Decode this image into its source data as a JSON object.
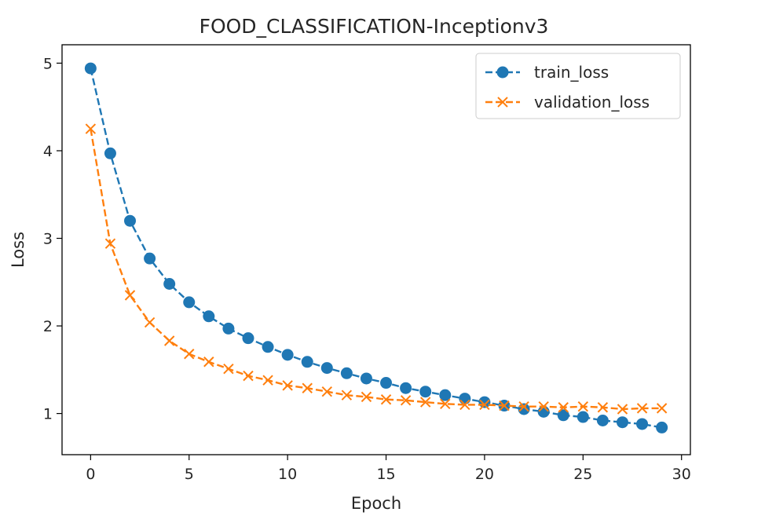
{
  "chart_data": {
    "type": "line",
    "title": "FOOD_CLASSIFICATION-Inceptionv3",
    "xlabel": "Epoch",
    "ylabel": "Loss",
    "xlim": [
      -1.45,
      30.45
    ],
    "ylim": [
      0.53,
      5.21
    ],
    "xticks": [
      0,
      5,
      10,
      15,
      20,
      25,
      30
    ],
    "yticks": [
      1,
      2,
      3,
      4,
      5
    ],
    "legend_position": "top-right",
    "x": [
      0,
      1,
      2,
      3,
      4,
      5,
      6,
      7,
      8,
      9,
      10,
      11,
      12,
      13,
      14,
      15,
      16,
      17,
      18,
      19,
      20,
      21,
      22,
      23,
      24,
      25,
      26,
      27,
      28,
      29
    ],
    "series": [
      {
        "name": "train_loss",
        "color": "#1f77b4",
        "linestyle": "dashed",
        "marker": "circle",
        "values": [
          4.94,
          3.97,
          3.2,
          2.77,
          2.48,
          2.27,
          2.11,
          1.97,
          1.86,
          1.76,
          1.67,
          1.59,
          1.52,
          1.46,
          1.4,
          1.35,
          1.29,
          1.25,
          1.21,
          1.17,
          1.13,
          1.09,
          1.05,
          1.02,
          0.98,
          0.96,
          0.92,
          0.9,
          0.88,
          0.84
        ]
      },
      {
        "name": "validation_loss",
        "color": "#ff7f0e",
        "linestyle": "dashed",
        "marker": "x",
        "values": [
          4.25,
          2.94,
          2.35,
          2.04,
          1.83,
          1.68,
          1.59,
          1.51,
          1.43,
          1.38,
          1.32,
          1.29,
          1.25,
          1.21,
          1.19,
          1.16,
          1.15,
          1.13,
          1.11,
          1.1,
          1.1,
          1.09,
          1.08,
          1.08,
          1.07,
          1.08,
          1.07,
          1.05,
          1.06,
          1.06
        ]
      }
    ]
  }
}
